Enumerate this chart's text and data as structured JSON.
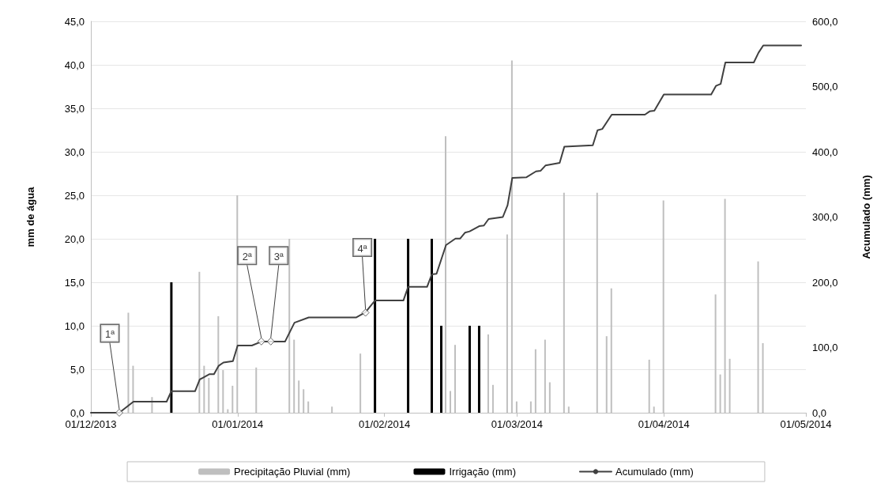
{
  "chart_data": {
    "type": "bar",
    "ylabel": "mm de água",
    "y2label": "Acumulado (mm)",
    "xlim": [
      "2013-12-01",
      "2014-05-01"
    ],
    "xticks": [
      {
        "value": "2013-12-01",
        "label": "01/12/2013"
      },
      {
        "value": "2014-01-01",
        "label": "01/01/2014"
      },
      {
        "value": "2014-02-01",
        "label": "01/02/2014"
      },
      {
        "value": "2014-03-01",
        "label": "01/03/2014"
      },
      {
        "value": "2014-04-01",
        "label": "01/04/2014"
      },
      {
        "value": "2014-05-01",
        "label": "01/05/2014"
      }
    ],
    "ylim": [
      0,
      45
    ],
    "yticks": [
      {
        "value": 0,
        "label": "0,0"
      },
      {
        "value": 5,
        "label": "5,0"
      },
      {
        "value": 10,
        "label": "10,0"
      },
      {
        "value": 15,
        "label": "15,0"
      },
      {
        "value": 20,
        "label": "20,0"
      },
      {
        "value": 25,
        "label": "25,0"
      },
      {
        "value": 30,
        "label": "30,0"
      },
      {
        "value": 35,
        "label": "35,0"
      },
      {
        "value": 40,
        "label": "40,0"
      },
      {
        "value": 45,
        "label": "45,0"
      }
    ],
    "y2lim": [
      0,
      600
    ],
    "y2ticks": [
      {
        "value": 0,
        "label": "0,0"
      },
      {
        "value": 100,
        "label": "100,0"
      },
      {
        "value": 200,
        "label": "200,0"
      },
      {
        "value": 300,
        "label": "300,0"
      },
      {
        "value": 400,
        "label": "400,0"
      },
      {
        "value": 500,
        "label": "500,0"
      },
      {
        "value": 600,
        "label": "600,0"
      }
    ],
    "grid": "y",
    "legend": "bottom",
    "series": [
      {
        "name": "Precipitação Pluvial (mm)",
        "color": "#bfbfbf",
        "x": [
          "2013-12-09",
          "2013-12-10",
          "2013-12-14",
          "2013-12-24",
          "2013-12-25",
          "2013-12-26",
          "2013-12-28",
          "2013-12-29",
          "2013-12-30",
          "2013-12-31",
          "2014-01-01",
          "2014-01-05",
          "2014-01-12",
          "2014-01-13",
          "2014-01-14",
          "2014-01-15",
          "2014-01-16",
          "2014-01-21",
          "2014-01-27",
          "2014-02-14",
          "2014-02-15",
          "2014-02-16",
          "2014-02-23",
          "2014-02-24",
          "2014-02-27",
          "2014-02-28",
          "2014-03-01",
          "2014-03-04",
          "2014-03-05",
          "2014-03-07",
          "2014-03-08",
          "2014-03-11",
          "2014-03-12",
          "2014-03-18",
          "2014-03-20",
          "2014-03-21",
          "2014-03-29",
          "2014-03-30",
          "2014-04-01",
          "2014-04-12",
          "2014-04-13",
          "2014-04-14",
          "2014-04-15",
          "2014-04-21",
          "2014-04-22"
        ],
        "values": [
          11.5,
          5.4,
          1.8,
          16.2,
          5.4,
          4.0,
          11.1,
          4.9,
          0.4,
          3.1,
          25.0,
          5.2,
          20.0,
          8.4,
          3.7,
          2.7,
          1.3,
          0.7,
          6.8,
          31.8,
          2.5,
          7.8,
          9.0,
          3.2,
          20.5,
          40.5,
          1.3,
          1.3,
          7.3,
          8.4,
          3.5,
          25.3,
          0.7,
          25.3,
          8.8,
          14.3,
          6.1,
          0.7,
          24.4,
          13.6,
          4.4,
          24.6,
          6.2,
          17.4,
          8.0
        ]
      },
      {
        "name": "Irrigação (mm)",
        "color": "#000000",
        "x": [
          "2013-12-18",
          "2014-01-30",
          "2014-02-06",
          "2014-02-11",
          "2014-02-13",
          "2014-02-19",
          "2014-02-21"
        ],
        "values": [
          15,
          20,
          20,
          20,
          10,
          10,
          10
        ]
      },
      {
        "name": "Acumulado (mm)",
        "type": "line",
        "axis": "y2",
        "color": "#404040",
        "marker": "none",
        "x": [
          "2013-12-01",
          "2013-12-07",
          "2013-12-10",
          "2013-12-17",
          "2013-12-18",
          "2013-12-23",
          "2013-12-24",
          "2013-12-26",
          "2013-12-27",
          "2013-12-28",
          "2013-12-29",
          "2013-12-31",
          "2014-01-01",
          "2014-01-04",
          "2014-01-06",
          "2014-01-08",
          "2014-01-11",
          "2014-01-13",
          "2014-01-16",
          "2014-01-26",
          "2014-01-28",
          "2014-01-30",
          "2014-02-05",
          "2014-02-06",
          "2014-02-10",
          "2014-02-11",
          "2014-02-12",
          "2014-02-14",
          "2014-02-16",
          "2014-02-17",
          "2014-02-18",
          "2014-02-19",
          "2014-02-21",
          "2014-02-22",
          "2014-02-23",
          "2014-02-26",
          "2014-02-27",
          "2014-02-28",
          "2014-03-03",
          "2014-03-05",
          "2014-03-06",
          "2014-03-07",
          "2014-03-10",
          "2014-03-11",
          "2014-03-17",
          "2014-03-18",
          "2014-03-19",
          "2014-03-21",
          "2014-03-28",
          "2014-03-29",
          "2014-03-30",
          "2014-04-01",
          "2014-04-11",
          "2014-04-12",
          "2014-04-13",
          "2014-04-14",
          "2014-04-20",
          "2014-04-21",
          "2014-04-22",
          "2014-04-30"
        ],
        "values": [
          0,
          0,
          17,
          17,
          33,
          33,
          51,
          59,
          59,
          72,
          77,
          79,
          103,
          103,
          109,
          109,
          109,
          138,
          146,
          146,
          154,
          172,
          172,
          193,
          193,
          212,
          213,
          257,
          267,
          267,
          276,
          278,
          286,
          287,
          297,
          300,
          318,
          360,
          361,
          370,
          371,
          379,
          383,
          408,
          410,
          433,
          435,
          457,
          457,
          462,
          463,
          488,
          488,
          501,
          504,
          537,
          537,
          552,
          563,
          563
        ]
      }
    ],
    "annotations": [
      {
        "text": "1ª",
        "x": "2013-12-07",
        "y": 0
      },
      {
        "text": "2ª",
        "x": "2014-01-06",
        "y": 8.2
      },
      {
        "text": "3ª",
        "x": "2014-01-08",
        "y": 8.2
      },
      {
        "text": "4ª",
        "x": "2014-01-28",
        "y": 11.5
      }
    ]
  }
}
